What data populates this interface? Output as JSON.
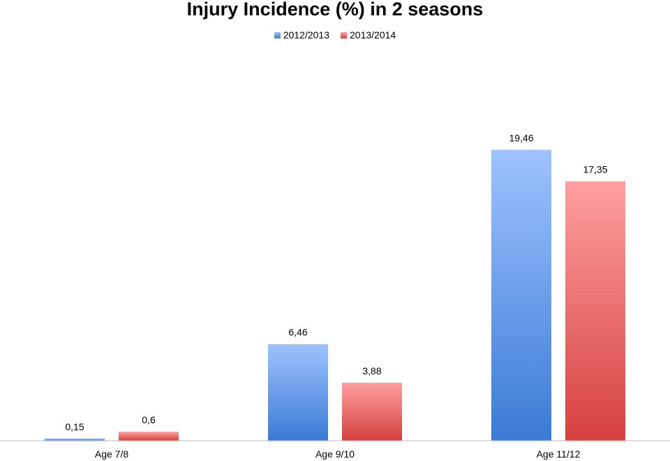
{
  "chart_data": {
    "type": "bar",
    "title": "Injury Incidence (%) in 2 seasons",
    "categories": [
      "Age 7/8",
      "Age 9/10",
      "Age 11/12"
    ],
    "series": [
      {
        "name": "2012/2013",
        "values": [
          0.15,
          6.46,
          19.46
        ],
        "labels": [
          "0,15",
          "6,46",
          "19,46"
        ],
        "color_top": "#9EC2FF",
        "color_bottom": "#3A7BD5"
      },
      {
        "name": "2013/2014",
        "values": [
          0.6,
          3.88,
          17.35
        ],
        "labels": [
          "0,6",
          "3,88",
          "17,35"
        ],
        "color_top": "#FF9F9F",
        "color_bottom": "#D64040"
      }
    ],
    "xlabel": "",
    "ylabel": "",
    "ylim": [
      0,
      22
    ],
    "grid": false,
    "legend_position": "top"
  }
}
